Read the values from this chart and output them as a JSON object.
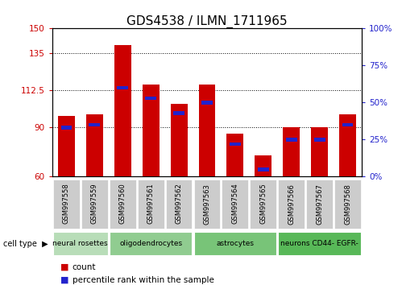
{
  "title": "GDS4538 / ILMN_1711965",
  "samples": [
    "GSM997558",
    "GSM997559",
    "GSM997560",
    "GSM997561",
    "GSM997562",
    "GSM997563",
    "GSM997564",
    "GSM997565",
    "GSM997566",
    "GSM997567",
    "GSM997568"
  ],
  "red_values": [
    97,
    98,
    140,
    116,
    104,
    116,
    86,
    73,
    90,
    90,
    98
  ],
  "blue_values_pct": [
    33,
    35,
    60,
    53,
    43,
    50,
    22,
    5,
    25,
    25,
    35
  ],
  "ylim_left": [
    60,
    150
  ],
  "ylim_right": [
    0,
    100
  ],
  "yticks_left": [
    60,
    90,
    112.5,
    135,
    150
  ],
  "yticks_right": [
    0,
    25,
    50,
    75,
    100
  ],
  "ytick_labels_left": [
    "60",
    "90",
    "112.5",
    "135",
    "150"
  ],
  "ytick_labels_right": [
    "0%",
    "25%",
    "50%",
    "75%",
    "100%"
  ],
  "cell_groups": [
    {
      "label": "neural rosettes",
      "start": 0,
      "end": 2,
      "color": "#b8ddb8"
    },
    {
      "label": "oligodendrocytes",
      "start": 2,
      "end": 5,
      "color": "#90cc90"
    },
    {
      "label": "astrocytes",
      "start": 5,
      "end": 8,
      "color": "#78c478"
    },
    {
      "label": "neurons CD44- EGFR-",
      "start": 8,
      "end": 11,
      "color": "#58b858"
    }
  ],
  "bar_red_color": "#cc0000",
  "bar_blue_color": "#2222cc",
  "tick_label_bg": "#cccccc",
  "cell_type_label": "cell type",
  "count_label": "count",
  "pct_label": "percentile rank within the sample",
  "title_fontsize": 11,
  "tick_fontsize": 7.5,
  "sample_fontsize": 6.0,
  "group_fontsize": 6.5,
  "legend_fontsize": 7.5
}
